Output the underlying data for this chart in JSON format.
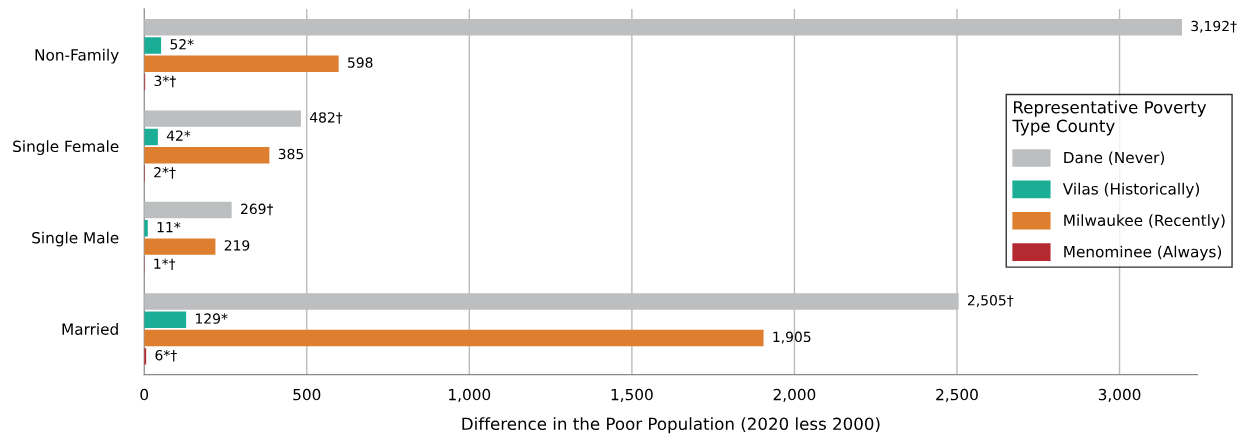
{
  "chart_data": {
    "type": "bar",
    "orientation": "horizontal",
    "xlabel": "Difference in the Poor Population (2020 less 2000)",
    "legend_title": "Representative Poverty\nType County",
    "legend": "right",
    "grid": "x",
    "categories": [
      "Non-Family",
      "Single Female",
      "Single Male",
      "Married"
    ],
    "series": [
      {
        "name": "Dane (Never)",
        "color": "#bdbec0",
        "values": [
          3192,
          482,
          269,
          2505
        ],
        "value_labels": [
          "3,192†",
          "482†",
          "269†",
          "2,505†"
        ]
      },
      {
        "name": "Vilas (Historically)",
        "color": "#1aae96",
        "values": [
          52,
          42,
          11,
          129
        ],
        "value_labels": [
          "52*",
          "42*",
          "11*",
          "129*"
        ]
      },
      {
        "name": "Milwaukee (Recently)",
        "color": "#dd7f2e",
        "values": [
          598,
          385,
          219,
          1905
        ],
        "value_labels": [
          "598",
          "385",
          "219",
          "1,905"
        ]
      },
      {
        "name": "Menominee (Always)",
        "color": "#b52a31",
        "values": [
          3,
          2,
          1,
          6
        ],
        "value_labels": [
          "3*†",
          "2*†",
          "1*†",
          "6*†"
        ]
      }
    ],
    "xlim": [
      0,
      3240
    ],
    "xticks": [
      0,
      {
        "value": 500,
        "label": "500"
      },
      {
        "value": 1000,
        "label": "1,000"
      },
      {
        "value": 1500,
        "label": "1,500"
      },
      {
        "value": 2000,
        "label": "2,000"
      },
      {
        "value": 2500,
        "label": "2,500"
      },
      {
        "value": 3000,
        "label": "3,000"
      }
    ]
  }
}
